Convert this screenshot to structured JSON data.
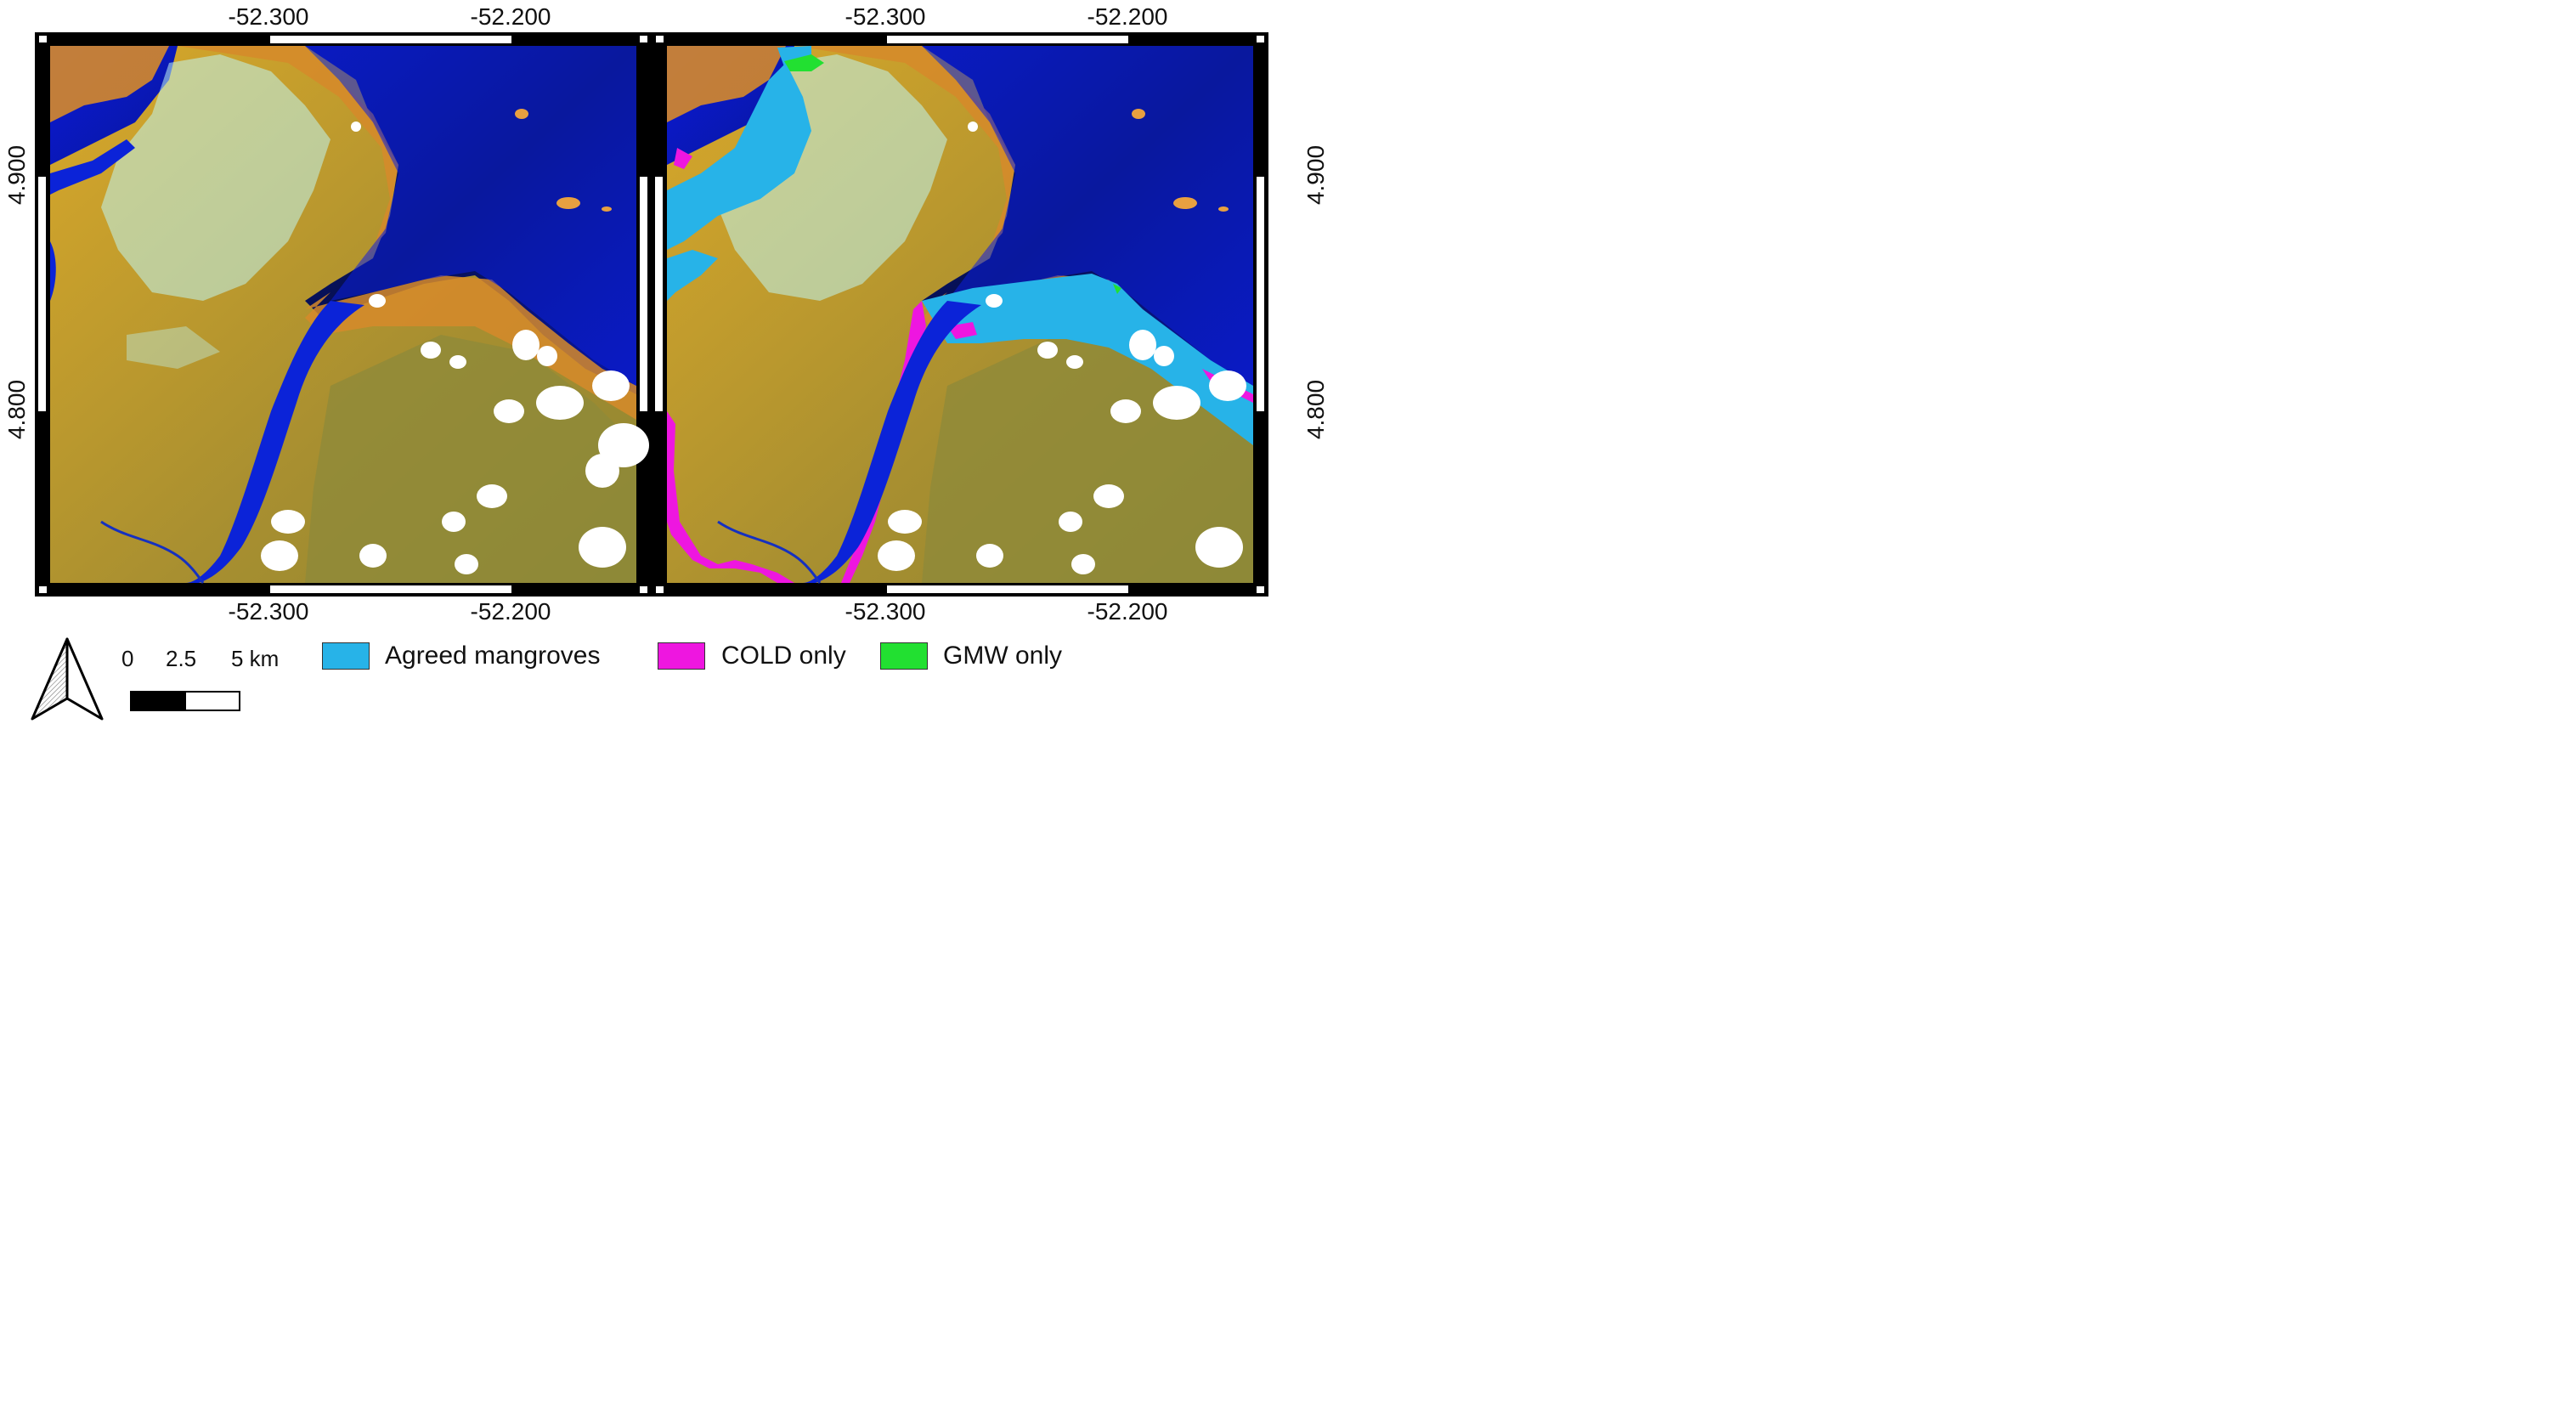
{
  "map": {
    "longitude_labels": [
      "-52.300",
      "-52.200"
    ],
    "latitude_labels": [
      "4.900",
      "4.800"
    ]
  },
  "legend": {
    "items": [
      {
        "label": "Agreed mangroves",
        "color": "#27b3e8"
      },
      {
        "label": "COLD only",
        "color": "#ee16e0"
      },
      {
        "label": "GMW only",
        "color": "#22e031"
      }
    ]
  },
  "scale_bar": {
    "labels": [
      "0",
      "2.5",
      "5 km"
    ]
  },
  "north_arrow": {
    "icon": "north-arrow-icon"
  },
  "colors": {
    "ocean_deep": "#060b3e",
    "water_blue": "#0a1ef0",
    "mudflat_orange": "#d68a2a",
    "vegetation": "#9a8a30",
    "urban_cyan": "#bff6f2",
    "cloud": "#ffffff"
  }
}
